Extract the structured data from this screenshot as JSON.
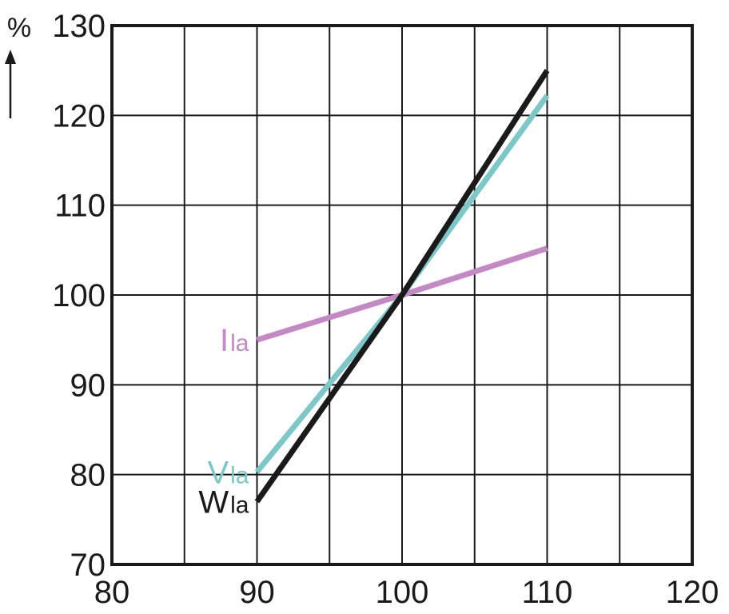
{
  "chart_data": {
    "type": "line",
    "title": "",
    "xlabel": "",
    "ylabel": "%",
    "xlim": [
      80,
      120
    ],
    "ylim": [
      70,
      130
    ],
    "x_ticks": [
      "80",
      "90",
      "100",
      "110",
      "120"
    ],
    "y_ticks": [
      "70",
      "80",
      "90",
      "100",
      "110",
      "120",
      "130"
    ],
    "grid": true,
    "series": [
      {
        "name": "Ila",
        "name_main": "I",
        "name_sub": "la",
        "color": "#c488c4",
        "x": [
          90,
          100,
          110
        ],
        "y": [
          95,
          100,
          105.2
        ]
      },
      {
        "name": "Vla",
        "name_main": "V",
        "name_sub": "la",
        "color": "#7cc8c8",
        "x": [
          90,
          100,
          110
        ],
        "y": [
          80.3,
          100,
          122.2
        ]
      },
      {
        "name": "Wla",
        "name_main": "W",
        "name_sub": "la",
        "color": "#1a1a1a",
        "x": [
          90,
          100,
          110
        ],
        "y": [
          77,
          100,
          125
        ]
      }
    ]
  }
}
